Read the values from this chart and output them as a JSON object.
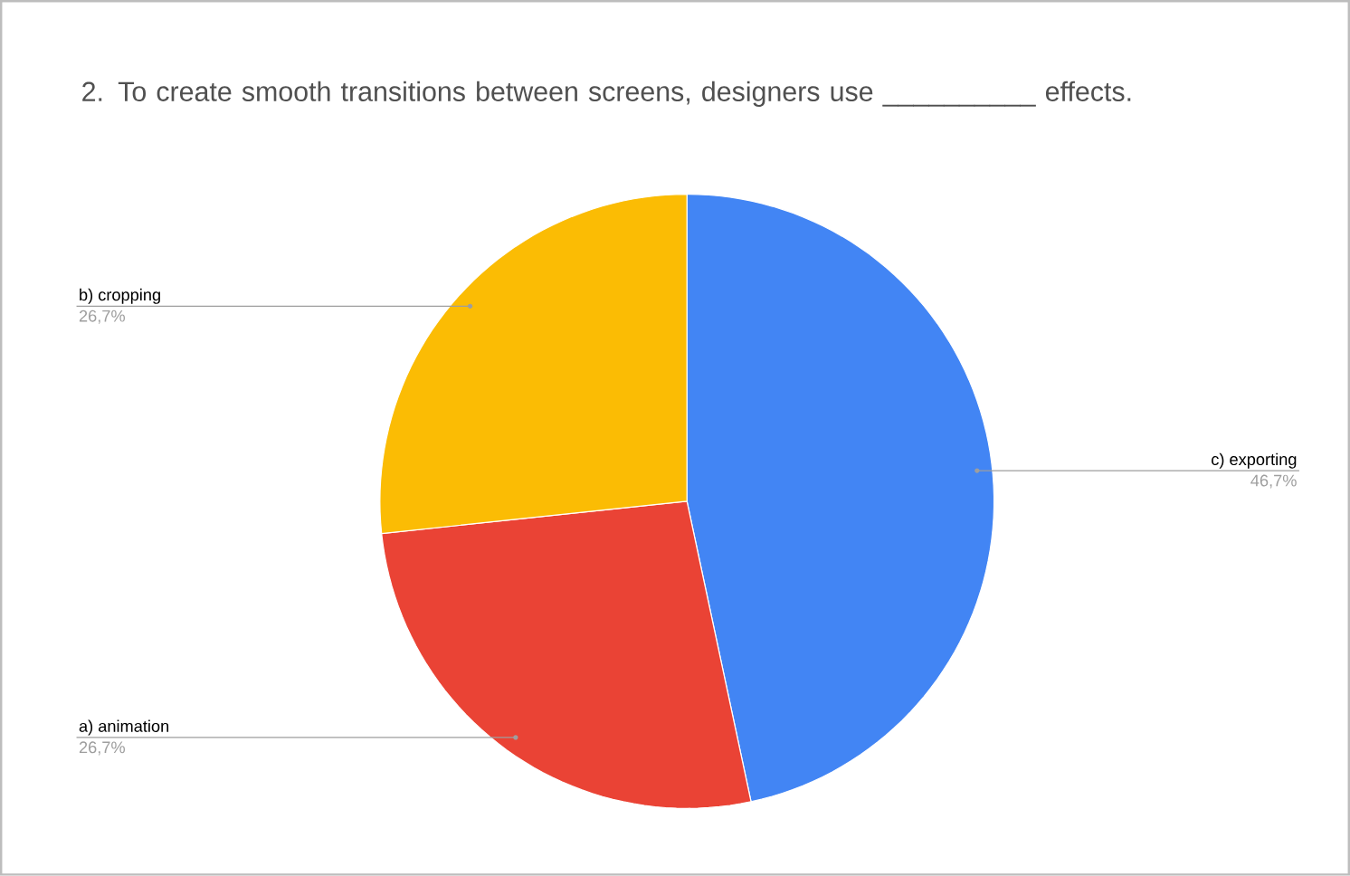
{
  "chart_data": {
    "type": "pie",
    "title": "2. To create smooth transitions between screens, designers use __________ effects.",
    "categories": [
      "c) exporting",
      "a) animation",
      "b) cropping"
    ],
    "values": [
      46.7,
      26.7,
      26.7
    ],
    "colors": [
      "#4285f4",
      "#ea4335",
      "#fbbc04"
    ],
    "value_labels": [
      "46,7%",
      "26,7%",
      "26,7%"
    ]
  }
}
